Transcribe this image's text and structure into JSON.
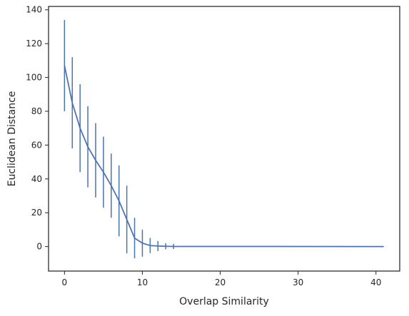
{
  "chart_data": {
    "type": "line",
    "title": "",
    "xlabel": "Overlap Similarity",
    "ylabel": "Euclidean Distance",
    "xlim": [
      -2.05,
      43.05
    ],
    "ylim": [
      -14.5,
      142
    ],
    "x_ticks": [
      0,
      10,
      20,
      30,
      40
    ],
    "y_ticks": [
      0,
      20,
      40,
      60,
      80,
      100,
      120,
      140
    ],
    "grid": false,
    "legend": "none",
    "series": [
      {
        "color": "#4c72b0",
        "x": [
          0,
          1,
          2,
          3,
          4,
          5,
          6,
          7,
          8,
          9,
          10,
          11,
          12,
          13,
          14,
          41
        ],
        "y": [
          107,
          85,
          70,
          59,
          51,
          44,
          36,
          27,
          16,
          5,
          2,
          0.6,
          0.3,
          0.15,
          0.08,
          0
        ],
        "error": [
          27,
          27,
          26,
          24,
          22,
          21,
          19,
          21,
          20,
          12,
          8,
          4.5,
          3,
          1.8,
          1.5,
          0
        ]
      }
    ]
  }
}
